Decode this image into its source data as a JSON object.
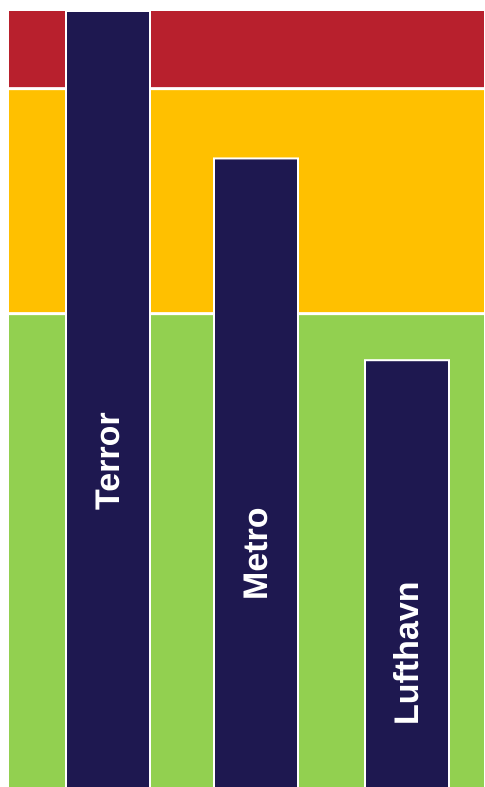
{
  "chart_data": {
    "type": "bar",
    "orientation": "vertical",
    "categories": [
      "Terror",
      "Metro",
      "Lufthavn"
    ],
    "values": [
      100,
      81,
      55
    ],
    "ylim": [
      0,
      100
    ],
    "bar_color": "#1e1850",
    "bar_outline_color": "#ffffff",
    "label_color": "#ffffff",
    "background_bands": [
      {
        "level": "green",
        "from": 0,
        "to": 61,
        "color": "#92d050"
      },
      {
        "level": "yellow",
        "from": 61,
        "to": 90,
        "color": "#ffc000"
      },
      {
        "level": "red",
        "from": 90,
        "to": 100,
        "color": "#b8202d"
      }
    ],
    "grid": false,
    "legend": "none"
  }
}
